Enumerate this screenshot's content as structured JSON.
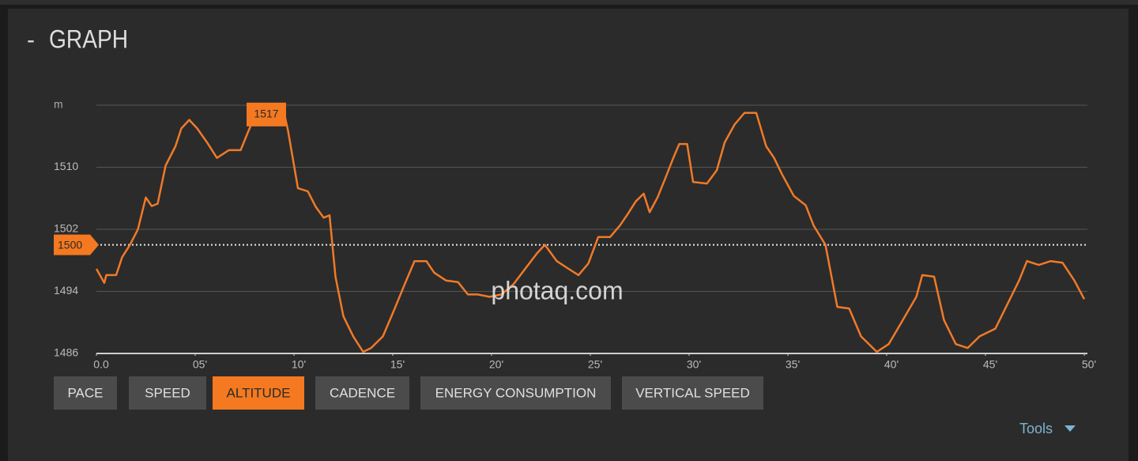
{
  "header": {
    "toggle": "-",
    "title": "GRAPH"
  },
  "chart_data": {
    "type": "line",
    "y_unit": "m",
    "xlim": [
      0,
      50
    ],
    "ylim": [
      1486,
      1518
    ],
    "xticks": [
      {
        "value": 0,
        "label": "0.0"
      },
      {
        "value": 5,
        "label": "05'"
      },
      {
        "value": 10,
        "label": "10'"
      },
      {
        "value": 15,
        "label": "15'"
      },
      {
        "value": 20,
        "label": "20'"
      },
      {
        "value": 25,
        "label": "25'"
      },
      {
        "value": 30,
        "label": "30'"
      },
      {
        "value": 35,
        "label": "35'"
      },
      {
        "value": 40,
        "label": "40'"
      },
      {
        "value": 45,
        "label": "45'"
      },
      {
        "value": 50,
        "label": "50'"
      }
    ],
    "yticks": [
      1486,
      1494,
      1502,
      1510
    ],
    "grid": true,
    "series": [
      {
        "name": "Altitude",
        "color": "#f07a28",
        "x": [
          0,
          0.4,
          0.5,
          1.0,
          1.3,
          1.7,
          2.1,
          2.5,
          2.8,
          3.1,
          3.5,
          4.0,
          4.3,
          4.7,
          5.1,
          5.6,
          6.1,
          6.7,
          7.3,
          7.7,
          8.1,
          9.5,
          9.7,
          10.2,
          10.7,
          11.1,
          11.5,
          11.8,
          12.1,
          12.5,
          13.0,
          13.5,
          13.9,
          14.5,
          15.1,
          15.6,
          16.1,
          16.7,
          17.1,
          17.7,
          18.3,
          18.8,
          19.3,
          19.9,
          20.5,
          21.1,
          21.7,
          22.3,
          22.7,
          23.3,
          23.9,
          24.4,
          24.9,
          25.4,
          26.0,
          26.5,
          26.9,
          27.3,
          27.7,
          28.0,
          28.4,
          28.8,
          29.2,
          29.5,
          29.9,
          30.2,
          30.9,
          31.4,
          31.8,
          32.3,
          32.8,
          33.4,
          33.9,
          34.3,
          34.7,
          35.3,
          35.9,
          36.3,
          36.9,
          37.5,
          38.1,
          38.7,
          39.5,
          40.1,
          40.7,
          41.5,
          41.8,
          42.4,
          42.9,
          43.5,
          44.1,
          44.7,
          45.5,
          46.1,
          46.7,
          47.1,
          47.7,
          48.3,
          48.9,
          49.5,
          50.0
        ],
        "values": [
          1496.9,
          1495.1,
          1496.1,
          1496.1,
          1498.4,
          1500,
          1502,
          1506.1,
          1505,
          1505.3,
          1510.2,
          1512.7,
          1515,
          1516.1,
          1515,
          1513.2,
          1511.2,
          1512.2,
          1512.2,
          1514.7,
          1517,
          1517,
          1514.7,
          1507.3,
          1506.9,
          1504.9,
          1503.5,
          1503.8,
          1495.9,
          1490.8,
          1488.2,
          1486.2,
          1486.7,
          1488.2,
          1491.8,
          1494.9,
          1497.9,
          1497.9,
          1496.4,
          1495.4,
          1495.2,
          1493.6,
          1493.6,
          1493.3,
          1493.6,
          1494.9,
          1496.9,
          1498.9,
          1500,
          1497.9,
          1496.9,
          1496.1,
          1497.6,
          1501,
          1501,
          1502.5,
          1504,
          1505.6,
          1506.6,
          1504.2,
          1506.1,
          1508.6,
          1511.2,
          1513,
          1513,
          1508.1,
          1507.9,
          1509.6,
          1513.2,
          1515.5,
          1517,
          1517,
          1512.7,
          1511.2,
          1509.1,
          1506.3,
          1505.1,
          1502.5,
          1500,
          1492,
          1491.8,
          1488.2,
          1486.2,
          1487.2,
          1489.8,
          1493.3,
          1496.1,
          1495.9,
          1490.3,
          1487.2,
          1486.7,
          1488.2,
          1489.2,
          1492.3,
          1495.4,
          1497.9,
          1497.4,
          1497.9,
          1497.7,
          1495.4,
          1493
        ]
      }
    ],
    "reference_line": {
      "value": 1500
    },
    "max_marker": {
      "x": 8.6,
      "value": 1517
    }
  },
  "buttons": [
    {
      "label": "PACE"
    },
    {
      "label": "SPEED"
    },
    {
      "label": "ALTITUDE",
      "active": true
    },
    {
      "label": "CADENCE"
    },
    {
      "label": "ENERGY CONSUMPTION"
    },
    {
      "label": "VERTICAL SPEED"
    }
  ],
  "tools": "Tools",
  "watermark": "photaq.com"
}
